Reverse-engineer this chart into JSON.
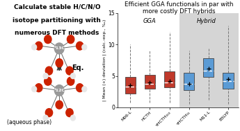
{
  "title_right": "Efficient GGA functionals in par with\nmore costly DFT hybrids",
  "ylabel": "| Mean (+) deviation | (calc.-exp., ‰)",
  "gga_label": "GGA",
  "hybrid_label": "Hybrid",
  "categories": [
    "M06-L",
    "HCTH",
    "τHCTH₀₀₀",
    "τHCTH₅₅",
    "M11-L",
    "B3LYP"
  ],
  "box_colors": [
    "#c0392b",
    "#c0392b",
    "#c0392b",
    "#5b9bd5",
    "#5b9bd5",
    "#5b9bd5"
  ],
  "gga_color": "#c0392b",
  "hybrid_color": "#5b9bd5",
  "hybrid_bg": "#d5d5d5",
  "boxes": [
    {
      "whislo": 0.8,
      "q1": 2.2,
      "med": 3.3,
      "q3": 4.8,
      "whishi": 10.0,
      "mean": 3.5
    },
    {
      "whislo": 0.8,
      "q1": 3.0,
      "med": 3.7,
      "q3": 5.2,
      "whishi": 9.0,
      "mean": 4.0
    },
    {
      "whislo": 0.8,
      "q1": 3.2,
      "med": 4.0,
      "q3": 5.7,
      "whishi": 12.0,
      "mean": 4.2
    },
    {
      "whislo": 0.5,
      "q1": 2.8,
      "med": 3.8,
      "q3": 5.5,
      "whishi": 9.0,
      "mean": 3.8
    },
    {
      "whislo": 1.2,
      "q1": 4.8,
      "med": 5.8,
      "q3": 7.8,
      "whishi": 9.5,
      "mean": 6.2
    },
    {
      "whislo": 0.5,
      "q1": 3.0,
      "med": 4.2,
      "q3": 5.5,
      "whishi": 13.0,
      "mean": 4.5
    }
  ],
  "ylim": [
    0,
    15
  ],
  "yticks": [
    0,
    5,
    10,
    15
  ],
  "left_panel_bg": "#7ecfc0",
  "aqueous_label": "(aqueous phase)",
  "eq_label": "Eq."
}
